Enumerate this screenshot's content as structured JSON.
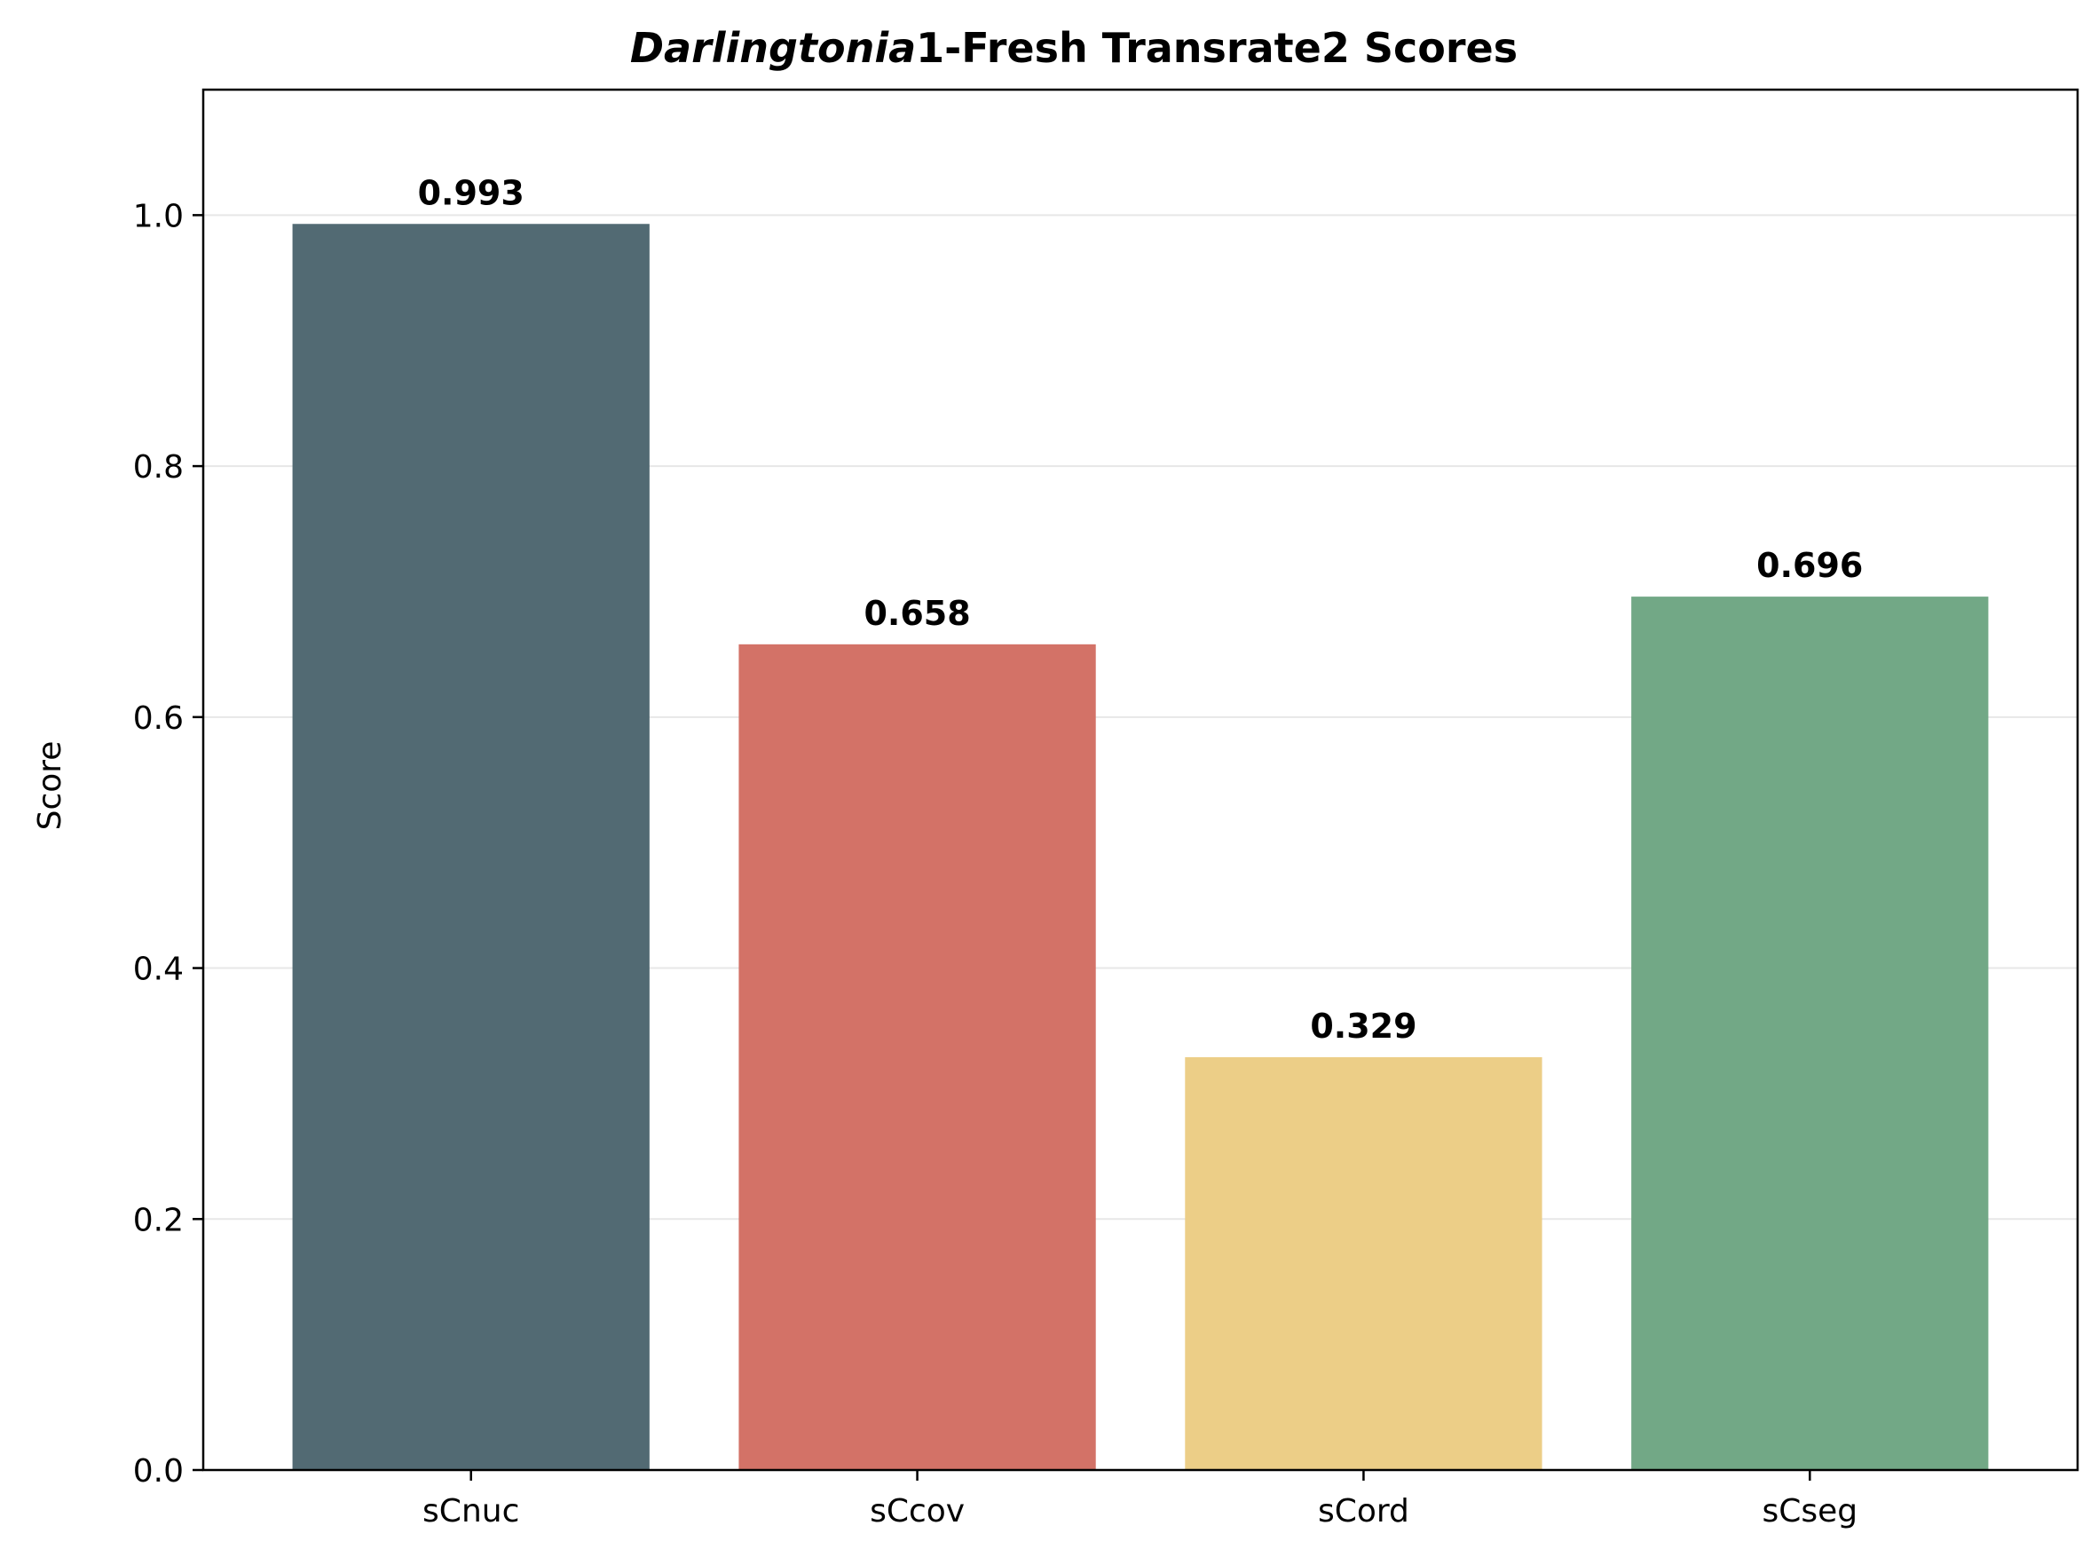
{
  "chart_data": {
    "type": "bar",
    "title_italic": "Darlingtonia",
    "title_rest": "1-Fresh Transrate2 Scores",
    "xlabel": "",
    "ylabel": "Score",
    "ylim": [
      0,
      1.1
    ],
    "yticks": [
      0.0,
      0.2,
      0.4,
      0.6,
      0.8,
      1.0
    ],
    "ytick_labels": [
      "0.0",
      "0.2",
      "0.4",
      "0.6",
      "0.8",
      "1.0"
    ],
    "grid": "horizontal",
    "categories": [
      "sCnuc",
      "sCcov",
      "sCord",
      "sCseg"
    ],
    "values": [
      0.993,
      0.658,
      0.329,
      0.696
    ],
    "value_labels": [
      "0.993",
      "0.658",
      "0.329",
      "0.696"
    ],
    "colors": [
      "#526a73",
      "#d37267",
      "#ecce87",
      "#72a886"
    ]
  }
}
